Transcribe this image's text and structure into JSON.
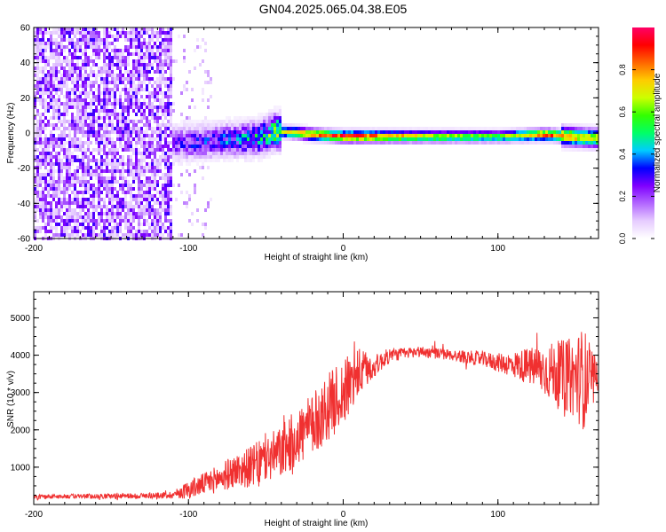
{
  "chart_data": [
    {
      "type": "heatmap",
      "title": "GN04.2025.065.04.38.E05",
      "xlabel": "Height of straight line (km)",
      "ylabel": "Frequency (Hz)",
      "xlim": [
        -200,
        165
      ],
      "ylim": [
        -60,
        60
      ],
      "xticks": [
        -200,
        -100,
        0,
        100
      ],
      "yticks": [
        -60,
        -40,
        -20,
        0,
        20,
        40,
        60
      ],
      "colorbar": {
        "label": "Normalized spectral amplitude",
        "range": [
          0,
          1
        ],
        "ticks": [
          0.0,
          0.2,
          0.4,
          0.6,
          0.8
        ],
        "tick_labels": [
          "0.0",
          "0.2",
          "0.4",
          "0.6",
          "0.8"
        ],
        "colormap": [
          "#ffffff",
          "#e6ccff",
          "#b266ff",
          "#7f00ff",
          "#0000ff",
          "#00ccff",
          "#00ff66",
          "#33ff00",
          "#ccff00",
          "#ffcc00",
          "#ff6600",
          "#ff0000",
          "#ff0066"
        ]
      },
      "ridge": [
        {
          "x": -110,
          "freq": -5,
          "amplitude": 0.25
        },
        {
          "x": -90,
          "freq": -4,
          "amplitude": 0.3
        },
        {
          "x": -70,
          "freq": -3,
          "amplitude": 0.35
        },
        {
          "x": -55,
          "freq": -2,
          "amplitude": 0.45
        },
        {
          "x": -45,
          "freq": 2,
          "amplitude": 0.6
        },
        {
          "x": -30,
          "freq": 1,
          "amplitude": 0.75
        },
        {
          "x": -20,
          "freq": 0,
          "amplitude": 0.85
        },
        {
          "x": 0,
          "freq": -1,
          "amplitude": 0.95
        },
        {
          "x": 50,
          "freq": -1,
          "amplitude": 0.7
        },
        {
          "x": 100,
          "freq": -1,
          "amplitude": 0.6
        },
        {
          "x": 130,
          "freq": 0,
          "amplitude": 0.9
        },
        {
          "x": 160,
          "freq": -2,
          "amplitude": 0.7
        }
      ],
      "grid": false
    },
    {
      "type": "line",
      "xlabel": "Height of straight line (km)",
      "ylabel": "SNR (10 * v/v)",
      "xlim": [
        -200,
        165
      ],
      "ylim": [
        0,
        5700
      ],
      "xticks": [
        -200,
        -100,
        0,
        100
      ],
      "yticks": [
        1000,
        2000,
        3000,
        4000,
        5000
      ],
      "color": "#f03030",
      "series": [
        {
          "x": [
            -200,
            -180,
            -160,
            -140,
            -120,
            -110,
            -100,
            -90,
            -80,
            -70,
            -60,
            -50,
            -40,
            -30,
            -20,
            -10,
            0,
            10,
            20,
            30,
            40,
            50,
            60,
            70,
            80,
            90,
            100,
            110,
            120,
            130,
            140,
            150,
            155,
            160,
            165
          ],
          "values": [
            200,
            220,
            220,
            230,
            240,
            260,
            400,
            550,
            700,
            900,
            1000,
            1200,
            1400,
            1800,
            2100,
            2600,
            3000,
            3500,
            3700,
            4000,
            4050,
            4100,
            4050,
            4000,
            3950,
            3900,
            3800,
            3750,
            3700,
            3600,
            3500,
            3400,
            3400,
            3300,
            3400
          ],
          "noise": [
            60,
            60,
            70,
            70,
            80,
            100,
            250,
            300,
            380,
            450,
            550,
            650,
            700,
            800,
            850,
            900,
            900,
            700,
            300,
            200,
            150,
            150,
            150,
            150,
            180,
            200,
            250,
            350,
            500,
            700,
            900,
            1100,
            1400,
            1000,
            300
          ]
        }
      ],
      "grid": false
    }
  ]
}
